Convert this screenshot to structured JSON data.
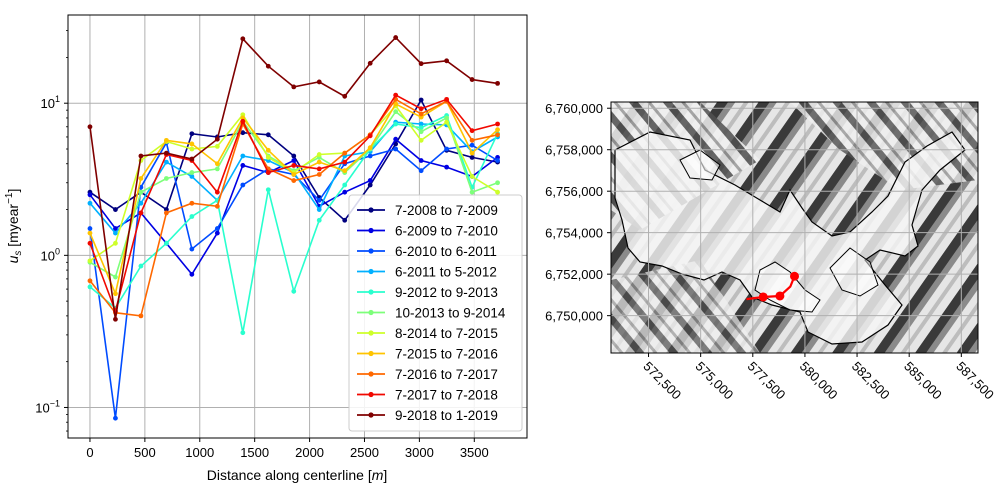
{
  "chart_data": [
    {
      "type": "line",
      "xlabel": "Distance along centerline [m]",
      "ylabel": "u_s [myear^-1]",
      "xlim": [
        -200,
        3980
      ],
      "ylim": [
        0.063,
        38
      ],
      "yscale": "log",
      "grid": true,
      "legend_position": "lower-right",
      "x": [
        0,
        232,
        464,
        696,
        928,
        1160,
        1392,
        1624,
        1856,
        2088,
        2320,
        2552,
        2784,
        3016,
        3248,
        3480,
        3712
      ],
      "x_ticks": [
        0,
        500,
        1000,
        1500,
        2000,
        2500,
        3000,
        3500
      ],
      "y_ticks": [
        {
          "value": 0.1,
          "base": "10",
          "exp": "−1"
        },
        {
          "value": 1,
          "base": "10",
          "exp": "0"
        },
        {
          "value": 10,
          "base": "10",
          "exp": "1"
        }
      ],
      "series": [
        {
          "name": "7-2008 to 7-2009",
          "color": "#00007f",
          "values": [
            2.6,
            2.0,
            2.6,
            2.0,
            6.3,
            6.0,
            6.4,
            6.2,
            4.5,
            2.4,
            1.7,
            2.9,
            5.4,
            10.5,
            4.9,
            4.4,
            4.1
          ]
        },
        {
          "name": "6-2009 to 7-2010",
          "color": "#0000e3",
          "values": [
            2.5,
            1.5,
            1.9,
            1.2,
            0.75,
            1.4,
            3.9,
            3.5,
            4.2,
            2.1,
            2.6,
            3.1,
            5.8,
            4.2,
            3.8,
            3.3,
            4.4
          ]
        },
        {
          "name": "6-2010 to 6-2011",
          "color": "#004cff",
          "values": [
            1.5,
            0.085,
            2.8,
            5.5,
            1.1,
            1.5,
            2.9,
            3.7,
            3.4,
            2.3,
            4.0,
            4.5,
            5.0,
            3.6,
            5.0,
            5.3,
            4.2
          ]
        },
        {
          "name": "6-2011 to 5-2012",
          "color": "#00b0ff",
          "values": [
            2.2,
            1.4,
            2.2,
            4.1,
            3.3,
            2.3,
            4.5,
            4.2,
            3.5,
            2.0,
            4.5,
            4.8,
            7.5,
            7.3,
            7.2,
            4.8,
            6.0
          ]
        },
        {
          "name": "9-2012 to 9-2013",
          "color": "#29ffce",
          "values": [
            0.62,
            0.45,
            0.85,
            1.2,
            1.8,
            2.3,
            0.31,
            2.7,
            0.58,
            1.7,
            2.9,
            5.0,
            7.3,
            6.9,
            8.3,
            2.8,
            6.3
          ]
        },
        {
          "name": "10-2013 to 9-2014",
          "color": "#7dff7a",
          "values": [
            0.9,
            0.72,
            2.6,
            3.2,
            3.5,
            3.7,
            7.6,
            4.5,
            3.6,
            4.4,
            3.5,
            5.0,
            8.8,
            6.5,
            8.0,
            2.6,
            3.0
          ]
        },
        {
          "name": "8-2014 to 7-2015",
          "color": "#ceff29",
          "values": [
            0.92,
            1.2,
            4.2,
            5.6,
            5.0,
            5.2,
            8.4,
            4.4,
            3.5,
            4.6,
            4.7,
            6.2,
            9.6,
            5.7,
            7.5,
            3.3,
            2.6
          ]
        },
        {
          "name": "7-2015 to 7-2016",
          "color": "#ffc400",
          "values": [
            1.4,
            0.56,
            3.2,
            5.7,
            5.4,
            4.0,
            8.0,
            4.9,
            3.4,
            4.1,
            3.6,
            5.1,
            9.9,
            8.1,
            10.3,
            4.7,
            6.7
          ]
        },
        {
          "name": "7-2016 to 7-2017",
          "color": "#ff6800",
          "values": [
            0.68,
            0.42,
            0.4,
            1.9,
            2.2,
            2.1,
            7.3,
            3.7,
            3.1,
            3.4,
            4.7,
            6.2,
            10.6,
            8.5,
            10.3,
            5.7,
            6.2
          ]
        },
        {
          "name": "7-2017 to 7-2018",
          "color": "#f10800",
          "values": [
            1.2,
            0.43,
            1.9,
            4.6,
            4.2,
            2.6,
            7.6,
            3.5,
            3.9,
            3.7,
            4.1,
            6.1,
            11.3,
            9.2,
            10.6,
            6.6,
            7.3
          ]
        },
        {
          "name": "9-2018 to 1-2019",
          "color": "#7f0000",
          "values": [
            7.0,
            0.38,
            4.5,
            4.7,
            4.3,
            5.8,
            26.5,
            17.5,
            12.8,
            13.8,
            11.1,
            18.3,
            27.0,
            18.2,
            19.0,
            14.3,
            13.5
          ]
        }
      ]
    },
    {
      "type": "map",
      "x_ticks": [
        "572,500",
        "575,000",
        "577,500",
        "580,000",
        "582,500",
        "585,000",
        "587,500"
      ],
      "x_tick_values": [
        572500,
        575000,
        577500,
        580000,
        582500,
        585000,
        587500
      ],
      "xlim": [
        570700,
        588300
      ],
      "y_ticks": [
        "6,760,000",
        "6,758,000",
        "6,756,000",
        "6,754,000",
        "6,752,000",
        "6,750,000"
      ],
      "y_tick_values": [
        6760000,
        6758000,
        6756000,
        6754000,
        6752000,
        6750000
      ],
      "ylim": [
        6748200,
        6760300
      ],
      "grid": true,
      "centerline_color": "#ff0000",
      "centerline": [
        [
          577200,
          6750800
        ],
        [
          578000,
          6750900
        ],
        [
          578800,
          6750950
        ],
        [
          579300,
          6751400
        ],
        [
          579500,
          6751900
        ]
      ],
      "centerline_markers": [
        [
          578000,
          6750900
        ],
        [
          578800,
          6750950
        ],
        [
          579500,
          6751900
        ]
      ]
    }
  ]
}
